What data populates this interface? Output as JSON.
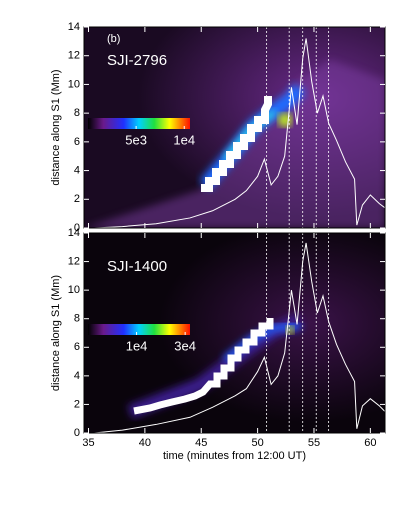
{
  "chart_data": [
    {
      "type": "line",
      "panel_label": "(b)",
      "title": "SJI-2796",
      "ylabel": "distance along S1 (Mm)",
      "xlim": [
        34.6,
        61.3
      ],
      "ylim": [
        0,
        14
      ],
      "xticks": [
        35,
        40,
        45,
        50,
        55,
        60
      ],
      "yticks": [
        0,
        2,
        4,
        6,
        8,
        10,
        12,
        14
      ],
      "series": [
        {
          "color": "#ffffff",
          "x": [
            35.5,
            38,
            41,
            44,
            46,
            48,
            49,
            50,
            50.6,
            51.2,
            51.8,
            52.4,
            53,
            53.5,
            54,
            54.3,
            54.8,
            55.3,
            55.8,
            56.3,
            57,
            57.8,
            58.6,
            58.8,
            59.3,
            60,
            60.8,
            61.3
          ],
          "values": [
            0,
            0.1,
            0.3,
            0.7,
            1.2,
            2,
            2.6,
            3.6,
            4.8,
            3,
            3.6,
            5,
            9.8,
            7.2,
            11.8,
            13.2,
            10.2,
            8,
            9.2,
            7.3,
            6.1,
            4.6,
            3.4,
            0.2,
            1.6,
            2.3,
            1.7,
            1.4
          ]
        }
      ],
      "vlines": [
        50.8,
        52.8,
        54,
        55.2,
        56.3
      ],
      "colorbar": {
        "lim": [
          0,
          10600
        ],
        "ticks": [
          {
            "value": 5000,
            "label": "5e3"
          },
          {
            "value": 10000,
            "label": "1e4"
          }
        ]
      }
    },
    {
      "type": "line",
      "title": "SJI-1400",
      "ylabel": "distance along S1 (Mm)",
      "xlabel": "time (minutes from 12:00 UT)",
      "xlim": [
        34.6,
        61.3
      ],
      "ylim": [
        0,
        14
      ],
      "xticks": [
        35,
        40,
        45,
        50,
        55,
        60
      ],
      "yticks": [
        0,
        2,
        4,
        6,
        8,
        10,
        12,
        14
      ],
      "series": [
        {
          "color": "#ffffff",
          "x": [
            35.5,
            38,
            41,
            44,
            46,
            48,
            49,
            50,
            50.6,
            51.2,
            51.8,
            52.4,
            53,
            53.5,
            54,
            54.3,
            54.8,
            55.3,
            55.8,
            56.3,
            57,
            57.8,
            58.6,
            58.8,
            59.3,
            60,
            60.8,
            61.3
          ],
          "values": [
            0,
            0.2,
            0.6,
            1.1,
            1.8,
            2.6,
            3.1,
            4.3,
            5.3,
            3.4,
            4,
            5.6,
            10,
            7.6,
            12,
            13.3,
            10.6,
            8.4,
            9.6,
            7.8,
            6.2,
            4.8,
            3.6,
            0.3,
            1.9,
            2.4,
            1.9,
            1.5
          ]
        }
      ],
      "vlines": [
        50.8,
        52.8,
        54,
        55.2,
        56.3
      ],
      "colorbar": {
        "lim": [
          -10000,
          32000
        ],
        "ticks": [
          {
            "value": 10000,
            "label": "1e4"
          },
          {
            "value": 30000,
            "label": "3e4"
          }
        ]
      }
    }
  ]
}
